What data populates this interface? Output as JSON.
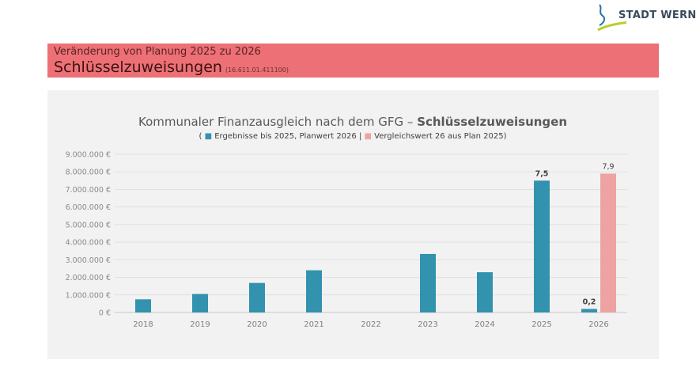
{
  "logo": {
    "text": "STADT WERNI"
  },
  "header": {
    "line1": "Veränderung von Planung 2025 zu 2026",
    "title": "Schlüsselzuweisungen",
    "code": "(16.611.01.411100)"
  },
  "colors": {
    "header_band": "#ec7075",
    "series_main": "#3392ae",
    "series_comparison": "#eea3a3"
  },
  "chart_data": {
    "type": "bar",
    "title_regular": "Kommunaler Finanzausgleich nach dem GFG – ",
    "title_bold": "Schlüsselzuweisungen",
    "subtitle_parts": [
      "( ",
      " Ergebnisse bis 2025, Planwert 2026 | ",
      " Vergleichswert 26 aus Plan 2025)"
    ],
    "categories": [
      "2018",
      "2019",
      "2020",
      "2021",
      "2022",
      "2023",
      "2024",
      "2025",
      "2026"
    ],
    "series": [
      {
        "name": "Ergebnisse bis 2025, Planwert 2026",
        "color": "#3392ae",
        "values": [
          750000,
          1050000,
          1680000,
          2400000,
          0,
          3330000,
          2290000,
          7500000,
          200000
        ]
      },
      {
        "name": "Vergleichswert 26 aus Plan 2025",
        "color": "#eea3a3",
        "values": [
          null,
          null,
          null,
          null,
          null,
          null,
          null,
          null,
          7900000
        ]
      }
    ],
    "data_labels": [
      {
        "category": "2025",
        "series": 0,
        "text": "7,5"
      },
      {
        "category": "2026",
        "series": 0,
        "text": "0,2"
      },
      {
        "category": "2026",
        "series": 1,
        "text": "7,9"
      }
    ],
    "y_ticks": [
      0,
      1000000,
      2000000,
      3000000,
      4000000,
      5000000,
      6000000,
      7000000,
      8000000,
      9000000
    ],
    "y_tick_labels": [
      "0 €",
      "1.000.000 €",
      "2.000.000 €",
      "3.000.000 €",
      "4.000.000 €",
      "5.000.000 €",
      "6.000.000 €",
      "7.000.000 €",
      "8.000.000 €",
      "9.000.000 €"
    ],
    "ylim": [
      0,
      9000000
    ],
    "grid": true,
    "legend": "inline-subtitle"
  }
}
